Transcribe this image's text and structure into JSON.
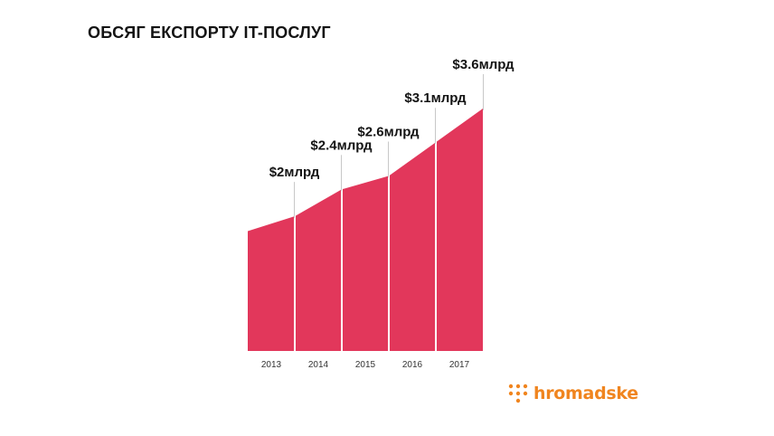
{
  "chart_data": {
    "type": "area",
    "title": "ОБСЯГ ЕКСПОРТУ IT-ПОСЛУГ",
    "categories": [
      "2013",
      "2014",
      "2015",
      "2016",
      "2017"
    ],
    "series": [
      {
        "values": [
          2.0,
          2.4,
          2.6,
          3.1,
          3.6
        ],
        "color": "#e2375b"
      }
    ],
    "data_labels": [
      "$2млрд",
      "$2.4млрд",
      "$2.6млрд",
      "$3.1млрд",
      "$3.6млрд"
    ],
    "ylim": [
      0,
      3.6
    ],
    "grid": false,
    "legend": "none"
  },
  "brand": {
    "logo_text": "hromadske",
    "logo_icon": "dot-grid-logo-icon",
    "color": "#f0851f"
  }
}
